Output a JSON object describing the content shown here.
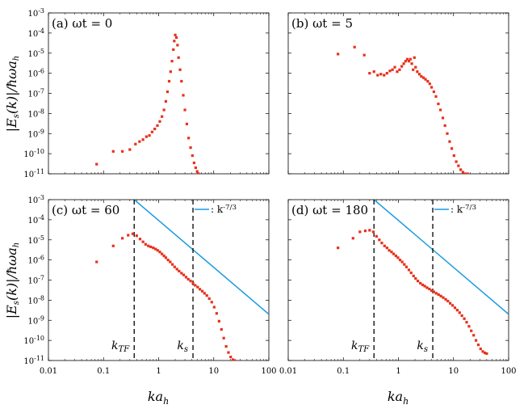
{
  "chart_data": {
    "type": "scatter",
    "xlabel": "ka_h",
    "ylabel": "|E_s(k)|/ħωa_h",
    "xscale": "log",
    "yscale": "log",
    "xlim": [
      0.01,
      100
    ],
    "ylim": [
      1e-11,
      0.001
    ],
    "x_tick_labels": [
      "0.01",
      "0.1",
      "1",
      "10",
      "100"
    ],
    "y_tick_labels": [
      "10-11",
      "10-10",
      "10-9",
      "10-8",
      "10-7",
      "10-6",
      "10-5",
      "10-4",
      "10-3"
    ],
    "panels": [
      {
        "id": "a",
        "label": "(a) ωt = 0",
        "series": [
          {
            "name": "E_s(k)",
            "color": "#e8301c",
            "x": [
              0.075,
              0.15,
              0.22,
              0.3,
              0.38,
              0.45,
              0.52,
              0.6,
              0.68,
              0.76,
              0.85,
              0.95,
              1.05,
              1.15,
              1.25,
              1.35,
              1.45,
              1.55,
              1.65,
              1.75,
              1.85,
              1.92,
              2.0,
              2.1,
              2.2,
              2.3,
              2.45,
              2.6,
              2.8,
              3.0,
              3.25,
              3.5,
              3.8,
              4.1,
              4.4,
              4.7,
              5.0,
              5.3
            ],
            "y": [
              3e-11,
              1.3e-10,
              1.3e-10,
              1.6e-10,
              3e-10,
              4e-10,
              5e-10,
              7e-10,
              8e-10,
              1.2e-09,
              1.7e-09,
              2.5e-09,
              4e-09,
              7e-09,
              1.5e-08,
              4e-08,
              1.2e-07,
              4e-07,
              1.2e-06,
              4e-06,
              1.5e-05,
              4e-05,
              8e-05,
              6e-05,
              2.5e-05,
              6e-06,
              1.5e-06,
              4e-07,
              8e-08,
              1.5e-08,
              3e-09,
              6e-10,
              2e-10,
              8e-11,
              3.5e-11,
              2e-11,
              1.3e-11,
              1e-11
            ]
          }
        ]
      },
      {
        "id": "b",
        "label": "(b) ωt = 5",
        "series": [
          {
            "name": "E_s(k)",
            "color": "#e8301c",
            "x": [
              0.08,
              0.16,
              0.24,
              0.3,
              0.36,
              0.42,
              0.48,
              0.55,
              0.62,
              0.7,
              0.78,
              0.86,
              0.95,
              1.05,
              1.15,
              1.25,
              1.35,
              1.45,
              1.55,
              1.65,
              1.75,
              1.85,
              1.95,
              2.05,
              2.2,
              2.4,
              2.6,
              2.85,
              3.1,
              3.4,
              3.7,
              4.0,
              4.4,
              4.8,
              5.3,
              5.8,
              6.4,
              7.0,
              7.7,
              8.5,
              9.3,
              10.2,
              11.2,
              12.3,
              13.5,
              14.8,
              16.3,
              18.0
            ],
            "y": [
              9e-06,
              2e-05,
              8e-06,
              1e-06,
              1.2e-06,
              8e-07,
              9e-07,
              8e-07,
              1e-06,
              1.3e-06,
              1.5e-06,
              2e-06,
              1.2e-06,
              1.5e-06,
              2.2e-06,
              3e-06,
              4e-06,
              5e-06,
              4e-06,
              5e-06,
              3e-06,
              1.5e-06,
              6e-06,
              2e-06,
              1.2e-06,
              9e-07,
              7e-07,
              6e-07,
              5e-07,
              4e-07,
              3e-07,
              2e-07,
              1.2e-07,
              7e-08,
              3e-08,
              1.5e-08,
              6e-09,
              2.5e-09,
              1e-09,
              4e-10,
              1.8e-10,
              8e-11,
              4e-11,
              2.5e-11,
              1.6e-11,
              1.2e-11,
              1e-11,
              1e-11
            ]
          }
        ]
      },
      {
        "id": "c",
        "label": "(c) ωt = 60",
        "legend": ": k^-7/3",
        "legend_color": "#1a9be0",
        "reference_line": {
          "x": [
            0.36,
            100
          ],
          "y": [
            0.001,
            2e-09
          ],
          "color": "#1a9be0"
        },
        "vlines": [
          {
            "x": 0.36,
            "label": "k_TF"
          },
          {
            "x": 4.2,
            "label": "k_s"
          }
        ],
        "series": [
          {
            "name": "E_s(k)",
            "color": "#e8301c",
            "x": [
              0.075,
              0.15,
              0.22,
              0.28,
              0.34,
              0.4,
              0.46,
              0.52,
              0.58,
              0.65,
              0.72,
              0.8,
              0.88,
              0.96,
              1.05,
              1.15,
              1.25,
              1.35,
              1.48,
              1.62,
              1.78,
              1.95,
              2.15,
              2.35,
              2.6,
              2.85,
              3.15,
              3.45,
              3.8,
              4.2,
              4.6,
              5.1,
              5.6,
              6.2,
              6.8,
              7.5,
              8.3,
              9.2,
              10.2,
              11.3,
              12.5,
              13.8,
              15.2,
              16.8,
              18.5,
              20.3,
              22.3,
              24.0
            ],
            "y": [
              8e-07,
              5e-06,
              1.2e-05,
              1.7e-05,
              2e-05,
              1.6e-05,
              1.1e-05,
              8e-06,
              6e-06,
              5e-06,
              4.5e-06,
              4e-06,
              3.5e-06,
              3e-06,
              2.5e-06,
              2e-06,
              1.6e-06,
              1.3e-06,
              1e-06,
              8e-07,
              6e-07,
              4.5e-07,
              3.5e-07,
              2.8e-07,
              2.2e-07,
              1.8e-07,
              1.4e-07,
              1.1e-07,
              9e-08,
              7e-08,
              5.5e-08,
              4.5e-08,
              3.5e-08,
              2.8e-08,
              2.2e-08,
              1.7e-08,
              1.2e-08,
              8e-09,
              4.5e-09,
              2.2e-09,
              9e-10,
              3.5e-10,
              1.3e-10,
              5e-11,
              2.5e-11,
              1.5e-11,
              1.1e-11,
              1e-11
            ]
          }
        ]
      },
      {
        "id": "d",
        "label": "(d) ωt = 180",
        "legend": ": k^-7/3",
        "legend_color": "#1a9be0",
        "reference_line": {
          "x": [
            0.36,
            100
          ],
          "y": [
            0.001,
            2e-09
          ],
          "color": "#1a9be0"
        },
        "vlines": [
          {
            "x": 0.36,
            "label": "k_TF"
          },
          {
            "x": 4.2,
            "label": "k_s"
          }
        ],
        "series": [
          {
            "name": "E_s(k)",
            "color": "#e8301c",
            "x": [
              0.08,
              0.15,
              0.2,
              0.25,
              0.3,
              0.35,
              0.4,
              0.45,
              0.5,
              0.56,
              0.62,
              0.68,
              0.75,
              0.82,
              0.9,
              0.98,
              1.07,
              1.17,
              1.28,
              1.4,
              1.55,
              1.7,
              1.88,
              2.05,
              2.25,
              2.5,
              2.75,
              3.0,
              3.3,
              3.65,
              4.0,
              4.4,
              4.85,
              5.35,
              5.9,
              6.5,
              7.2,
              7.9,
              8.7,
              9.6,
              10.6,
              11.7,
              12.9,
              14.2,
              15.7,
              17.3,
              19.1,
              21.0,
              23.2,
              25.6,
              28.2,
              31.0,
              34.0,
              37.0,
              40.0
            ],
            "y": [
              4e-06,
              1.2e-05,
              2.5e-05,
              2.8e-05,
              3e-05,
              2.5e-05,
              1.5e-05,
              1e-05,
              7e-06,
              5e-06,
              4e-06,
              3e-06,
              2.5e-06,
              2e-06,
              1.6e-06,
              1.3e-06,
              1e-06,
              8e-07,
              6e-07,
              4.5e-07,
              3.2e-07,
              2.3e-07,
              1.6e-07,
              1.2e-07,
              9e-08,
              7e-08,
              5.8e-08,
              5e-08,
              4.2e-08,
              3.6e-08,
              3e-08,
              2.6e-08,
              2.2e-08,
              1.9e-08,
              1.6e-08,
              1.35e-08,
              1.1e-08,
              9e-09,
              7e-09,
              5.5e-09,
              4.2e-09,
              3.2e-09,
              2.4e-09,
              1.7e-09,
              1.2e-09,
              8e-10,
              5e-10,
              3e-10,
              1.8e-10,
              1e-10,
              6e-11,
              3.8e-11,
              2.8e-11,
              2.4e-11,
              2.2e-11
            ]
          }
        ]
      }
    ]
  }
}
